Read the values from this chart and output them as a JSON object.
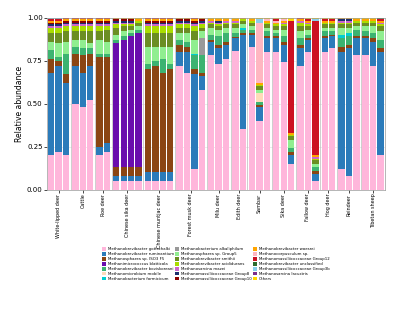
{
  "species": [
    "Methanobrevibacter gottschalki",
    "Methanobrevibacter ruminantium",
    "Methanosphaera sp. ISO3 F5",
    "Methanimicrococcus blatticola",
    "Methanobrevibacter boviskoreani",
    "Methanomicrobium mobile",
    "Methanobacterium formicicum",
    "Methanobacterium alkaliphilum",
    "Methanosphaera sp. Group5",
    "Methanobrevibacter smithii",
    "Methanobrevibacter acididurans",
    "Methanosarcina mazei",
    "Methanomassiliicoccaceae Group8",
    "Methanomassiliicoccaceae Group10",
    "Methanobrevibacter woesrei",
    "Methanocorpusculum sp.",
    "Methanomassiliicoccaceae Group12",
    "Methanobrevibacter unclassified",
    "Methanomassiliicoccaceae Group3b",
    "Methanosarcina lacustris",
    "Others"
  ],
  "colors": [
    "#FFB6DB",
    "#2B7BBA",
    "#8B4513",
    "#6A0DAD",
    "#3CB371",
    "#FFDAB9",
    "#00CED1",
    "#999999",
    "#90EE90",
    "#6B8E23",
    "#AADD00",
    "#CC66CC",
    "#1C2F6E",
    "#8B0000",
    "#FFA500",
    "#FFB6C1",
    "#CC1122",
    "#2D6A2D",
    "#87CEEB",
    "#7B2D8B",
    "#FFD700"
  ],
  "n_bars": [
    3,
    3,
    2,
    4,
    4,
    4,
    3,
    2,
    3,
    3,
    3,
    2,
    3,
    3
  ],
  "cat_labels": [
    "White-lipped deer",
    "Cattle",
    "Roe deer",
    "Chinese sika deer",
    "Chinese muntjac deer",
    "Forest musk deer",
    "Milu deer",
    "Edith deer",
    "Sambar",
    "Sika deer",
    "Fallow deer",
    "Hog deer",
    "Reindeer",
    "Tibetan sheep"
  ],
  "ylabel": "Relative abundance",
  "bars_data": [
    [
      0.2,
      0.48,
      0.08,
      0.0,
      0.05,
      0.0,
      0.0,
      0.0,
      0.05,
      0.05,
      0.03,
      0.01,
      0.01,
      0.01,
      0.01,
      0.0,
      0.01,
      0.0,
      0.01,
      0.0,
      0.0
    ],
    [
      0.22,
      0.5,
      0.03,
      0.0,
      0.02,
      0.0,
      0.0,
      0.0,
      0.08,
      0.06,
      0.03,
      0.01,
      0.01,
      0.01,
      0.01,
      0.0,
      0.01,
      0.0,
      0.01,
      0.0,
      0.0
    ],
    [
      0.2,
      0.42,
      0.05,
      0.0,
      0.12,
      0.0,
      0.0,
      0.0,
      0.07,
      0.06,
      0.03,
      0.01,
      0.01,
      0.01,
      0.01,
      0.0,
      0.01,
      0.0,
      0.0,
      0.0,
      0.0
    ],
    [
      0.5,
      0.22,
      0.07,
      0.0,
      0.04,
      0.0,
      0.0,
      0.0,
      0.04,
      0.05,
      0.03,
      0.01,
      0.01,
      0.01,
      0.01,
      0.0,
      0.01,
      0.0,
      0.0,
      0.0,
      0.0
    ],
    [
      0.48,
      0.2,
      0.1,
      0.0,
      0.04,
      0.0,
      0.0,
      0.0,
      0.05,
      0.05,
      0.03,
      0.01,
      0.01,
      0.01,
      0.01,
      0.0,
      0.01,
      0.0,
      0.0,
      0.0,
      0.0
    ],
    [
      0.52,
      0.2,
      0.07,
      0.0,
      0.03,
      0.0,
      0.0,
      0.0,
      0.03,
      0.07,
      0.03,
      0.01,
      0.01,
      0.01,
      0.01,
      0.0,
      0.01,
      0.0,
      0.0,
      0.0,
      0.0
    ],
    [
      0.2,
      0.05,
      0.52,
      0.0,
      0.02,
      0.0,
      0.0,
      0.0,
      0.08,
      0.05,
      0.03,
      0.01,
      0.01,
      0.01,
      0.01,
      0.0,
      0.01,
      0.0,
      0.0,
      0.0,
      0.0
    ],
    [
      0.22,
      0.05,
      0.5,
      0.0,
      0.02,
      0.0,
      0.0,
      0.0,
      0.07,
      0.07,
      0.02,
      0.01,
      0.01,
      0.01,
      0.01,
      0.0,
      0.01,
      0.0,
      0.0,
      0.0,
      0.0
    ],
    [
      0.05,
      0.03,
      0.05,
      0.72,
      0.02,
      0.0,
      0.0,
      0.0,
      0.03,
      0.04,
      0.02,
      0.01,
      0.01,
      0.01,
      0.01,
      0.0,
      0.0,
      0.0,
      0.0,
      0.0,
      0.0
    ],
    [
      0.05,
      0.03,
      0.05,
      0.74,
      0.02,
      0.0,
      0.0,
      0.0,
      0.03,
      0.03,
      0.01,
      0.01,
      0.01,
      0.01,
      0.01,
      0.0,
      0.0,
      0.0,
      0.0,
      0.0,
      0.0
    ],
    [
      0.05,
      0.03,
      0.05,
      0.76,
      0.02,
      0.0,
      0.0,
      0.0,
      0.02,
      0.02,
      0.01,
      0.01,
      0.01,
      0.01,
      0.01,
      0.0,
      0.0,
      0.0,
      0.0,
      0.0,
      0.0
    ],
    [
      0.05,
      0.03,
      0.05,
      0.78,
      0.02,
      0.0,
      0.0,
      0.0,
      0.02,
      0.02,
      0.01,
      0.0,
      0.0,
      0.0,
      0.01,
      0.0,
      0.0,
      0.0,
      0.0,
      0.0,
      0.01
    ],
    [
      0.05,
      0.05,
      0.6,
      0.0,
      0.03,
      0.0,
      0.0,
      0.0,
      0.1,
      0.08,
      0.04,
      0.01,
      0.01,
      0.01,
      0.01,
      0.0,
      0.01,
      0.0,
      0.0,
      0.0,
      0.0
    ],
    [
      0.05,
      0.05,
      0.62,
      0.0,
      0.03,
      0.0,
      0.0,
      0.0,
      0.08,
      0.08,
      0.04,
      0.01,
      0.01,
      0.01,
      0.01,
      0.0,
      0.01,
      0.0,
      0.0,
      0.0,
      0.0
    ],
    [
      0.05,
      0.05,
      0.58,
      0.0,
      0.08,
      0.0,
      0.0,
      0.0,
      0.07,
      0.08,
      0.04,
      0.01,
      0.01,
      0.01,
      0.01,
      0.0,
      0.01,
      0.0,
      0.0,
      0.0,
      0.0
    ],
    [
      0.05,
      0.05,
      0.6,
      0.0,
      0.03,
      0.0,
      0.0,
      0.0,
      0.1,
      0.08,
      0.04,
      0.01,
      0.01,
      0.01,
      0.01,
      0.0,
      0.01,
      0.0,
      0.0,
      0.0,
      0.0
    ],
    [
      0.72,
      0.08,
      0.04,
      0.0,
      0.03,
      0.0,
      0.0,
      0.0,
      0.04,
      0.03,
      0.02,
      0.01,
      0.01,
      0.01,
      0.01,
      0.0,
      0.0,
      0.0,
      0.0,
      0.0,
      0.0
    ],
    [
      0.68,
      0.12,
      0.03,
      0.0,
      0.03,
      0.0,
      0.0,
      0.0,
      0.05,
      0.03,
      0.02,
      0.01,
      0.01,
      0.01,
      0.01,
      0.0,
      0.0,
      0.0,
      0.0,
      0.0,
      0.0
    ],
    [
      0.12,
      0.55,
      0.03,
      0.0,
      0.08,
      0.0,
      0.01,
      0.0,
      0.08,
      0.05,
      0.03,
      0.01,
      0.01,
      0.01,
      0.01,
      0.0,
      0.01,
      0.0,
      0.0,
      0.0,
      0.0
    ],
    [
      0.58,
      0.08,
      0.02,
      0.0,
      0.1,
      0.0,
      0.0,
      0.1,
      0.04,
      0.02,
      0.02,
      0.01,
      0.01,
      0.01,
      0.01,
      0.0,
      0.0,
      0.0,
      0.0,
      0.0,
      0.0
    ],
    [
      0.78,
      0.08,
      0.01,
      0.0,
      0.03,
      0.0,
      0.0,
      0.0,
      0.04,
      0.02,
      0.01,
      0.01,
      0.0,
      0.0,
      0.01,
      0.0,
      0.0,
      0.0,
      0.0,
      0.0,
      0.01
    ],
    [
      0.73,
      0.09,
      0.02,
      0.0,
      0.05,
      0.0,
      0.0,
      0.0,
      0.04,
      0.02,
      0.01,
      0.01,
      0.01,
      0.0,
      0.01,
      0.0,
      0.0,
      0.0,
      0.0,
      0.0,
      0.01
    ],
    [
      0.75,
      0.08,
      0.02,
      0.0,
      0.05,
      0.0,
      0.0,
      0.0,
      0.03,
      0.02,
      0.01,
      0.01,
      0.0,
      0.0,
      0.01,
      0.0,
      0.0,
      0.0,
      0.0,
      0.0,
      0.01
    ],
    [
      0.8,
      0.07,
      0.01,
      0.0,
      0.02,
      0.0,
      0.0,
      0.0,
      0.03,
      0.02,
      0.01,
      0.01,
      0.0,
      0.0,
      0.01,
      0.0,
      0.0,
      0.0,
      0.0,
      0.0,
      0.01
    ],
    [
      0.35,
      0.55,
      0.01,
      0.0,
      0.02,
      0.0,
      0.01,
      0.0,
      0.02,
      0.02,
      0.01,
      0.0,
      0.0,
      0.0,
      0.01,
      0.0,
      0.0,
      0.0,
      0.0,
      0.0,
      0.0
    ],
    [
      0.82,
      0.07,
      0.01,
      0.0,
      0.02,
      0.0,
      0.0,
      0.0,
      0.02,
      0.02,
      0.01,
      0.0,
      0.0,
      0.0,
      0.01,
      0.0,
      0.0,
      0.0,
      0.0,
      0.0,
      0.01
    ],
    [
      0.4,
      0.08,
      0.01,
      0.0,
      0.02,
      0.05,
      0.0,
      0.0,
      0.02,
      0.02,
      0.01,
      0.0,
      0.0,
      0.0,
      0.01,
      0.35,
      0.0,
      0.0,
      0.02,
      0.0,
      0.01
    ],
    [
      0.8,
      0.08,
      0.01,
      0.0,
      0.03,
      0.0,
      0.0,
      0.0,
      0.02,
      0.02,
      0.01,
      0.0,
      0.0,
      0.0,
      0.01,
      0.01,
      0.0,
      0.0,
      0.0,
      0.0,
      0.01
    ],
    [
      0.8,
      0.08,
      0.01,
      0.0,
      0.02,
      0.0,
      0.0,
      0.0,
      0.02,
      0.02,
      0.01,
      0.0,
      0.0,
      0.0,
      0.01,
      0.01,
      0.01,
      0.0,
      0.0,
      0.0,
      0.01
    ],
    [
      0.74,
      0.1,
      0.02,
      0.0,
      0.03,
      0.0,
      0.0,
      0.0,
      0.04,
      0.02,
      0.01,
      0.01,
      0.0,
      0.0,
      0.01,
      0.01,
      0.0,
      0.0,
      0.0,
      0.0,
      0.01
    ],
    [
      0.15,
      0.05,
      0.02,
      0.0,
      0.02,
      0.0,
      0.0,
      0.0,
      0.05,
      0.02,
      0.01,
      0.0,
      0.0,
      0.0,
      0.01,
      0.0,
      0.65,
      0.0,
      0.0,
      0.0,
      0.02
    ],
    [
      0.72,
      0.1,
      0.02,
      0.0,
      0.04,
      0.0,
      0.0,
      0.0,
      0.04,
      0.03,
      0.02,
      0.01,
      0.0,
      0.0,
      0.01,
      0.0,
      0.01,
      0.0,
      0.0,
      0.0,
      0.0
    ],
    [
      0.8,
      0.07,
      0.01,
      0.0,
      0.02,
      0.0,
      0.0,
      0.0,
      0.03,
      0.02,
      0.01,
      0.01,
      0.0,
      0.0,
      0.01,
      0.0,
      0.01,
      0.0,
      0.0,
      0.0,
      0.01
    ],
    [
      0.05,
      0.04,
      0.02,
      0.0,
      0.02,
      0.0,
      0.0,
      0.0,
      0.02,
      0.02,
      0.01,
      0.01,
      0.0,
      0.0,
      0.01,
      0.0,
      0.78,
      0.0,
      0.01,
      0.0,
      0.01
    ],
    [
      0.8,
      0.08,
      0.01,
      0.0,
      0.03,
      0.0,
      0.0,
      0.0,
      0.02,
      0.02,
      0.01,
      0.0,
      0.0,
      0.0,
      0.01,
      0.0,
      0.01,
      0.0,
      0.0,
      0.0,
      0.01
    ],
    [
      0.82,
      0.07,
      0.01,
      0.0,
      0.02,
      0.0,
      0.0,
      0.0,
      0.02,
      0.02,
      0.01,
      0.0,
      0.0,
      0.0,
      0.01,
      0.0,
      0.01,
      0.0,
      0.0,
      0.0,
      0.01
    ],
    [
      0.12,
      0.68,
      0.03,
      0.0,
      0.05,
      0.0,
      0.02,
      0.0,
      0.04,
      0.02,
      0.01,
      0.01,
      0.01,
      0.0,
      0.01,
      0.0,
      0.0,
      0.0,
      0.0,
      0.0,
      0.0
    ],
    [
      0.08,
      0.75,
      0.02,
      0.0,
      0.05,
      0.0,
      0.02,
      0.0,
      0.03,
      0.02,
      0.01,
      0.01,
      0.01,
      0.0,
      0.01,
      0.0,
      0.0,
      0.0,
      0.0,
      0.0,
      0.0
    ],
    [
      0.78,
      0.1,
      0.01,
      0.0,
      0.04,
      0.0,
      0.0,
      0.0,
      0.02,
      0.02,
      0.01,
      0.0,
      0.0,
      0.0,
      0.01,
      0.0,
      0.0,
      0.0,
      0.0,
      0.0,
      0.01
    ],
    [
      0.78,
      0.1,
      0.01,
      0.0,
      0.03,
      0.0,
      0.0,
      0.0,
      0.03,
      0.02,
      0.01,
      0.0,
      0.0,
      0.0,
      0.01,
      0.0,
      0.0,
      0.0,
      0.0,
      0.0,
      0.01
    ],
    [
      0.72,
      0.14,
      0.02,
      0.0,
      0.03,
      0.0,
      0.0,
      0.0,
      0.04,
      0.02,
      0.01,
      0.0,
      0.0,
      0.0,
      0.01,
      0.0,
      0.0,
      0.0,
      0.0,
      0.0,
      0.01
    ],
    [
      0.2,
      0.6,
      0.02,
      0.0,
      0.05,
      0.0,
      0.0,
      0.0,
      0.05,
      0.03,
      0.01,
      0.01,
      0.0,
      0.0,
      0.01,
      0.0,
      0.01,
      0.01,
      0.0,
      0.0,
      0.0
    ]
  ]
}
